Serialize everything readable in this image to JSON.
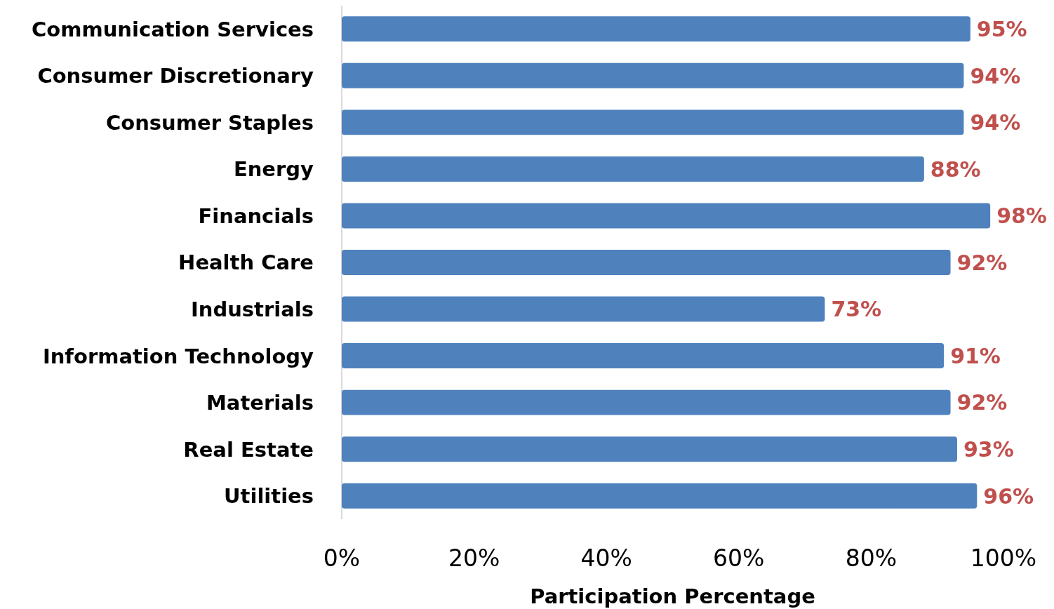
{
  "chart_data": {
    "type": "bar",
    "orientation": "horizontal",
    "xlabel": "Participation Percentage",
    "categories": [
      "Communication Services",
      "Consumer Discretionary",
      "Consumer Staples",
      "Energy",
      "Financials",
      "Health Care",
      "Industrials",
      "Information Technology",
      "Materials",
      "Real Estate",
      "Utilities"
    ],
    "values": [
      95,
      94,
      94,
      88,
      98,
      92,
      73,
      91,
      92,
      93,
      96
    ],
    "value_labels": [
      "95%",
      "94%",
      "94%",
      "88%",
      "98%",
      "92%",
      "73%",
      "91%",
      "92%",
      "93%",
      "96%"
    ],
    "color": "#4f81bd",
    "xlim": [
      0,
      100
    ],
    "xticks": [
      {
        "value": 0,
        "label": "0%"
      },
      {
        "value": 20,
        "label": "20%"
      },
      {
        "value": 40,
        "label": "40%"
      },
      {
        "value": 60,
        "label": "60%"
      },
      {
        "value": 80,
        "label": "80%"
      },
      {
        "value": 100,
        "label": "100%"
      }
    ],
    "grid": false
  }
}
